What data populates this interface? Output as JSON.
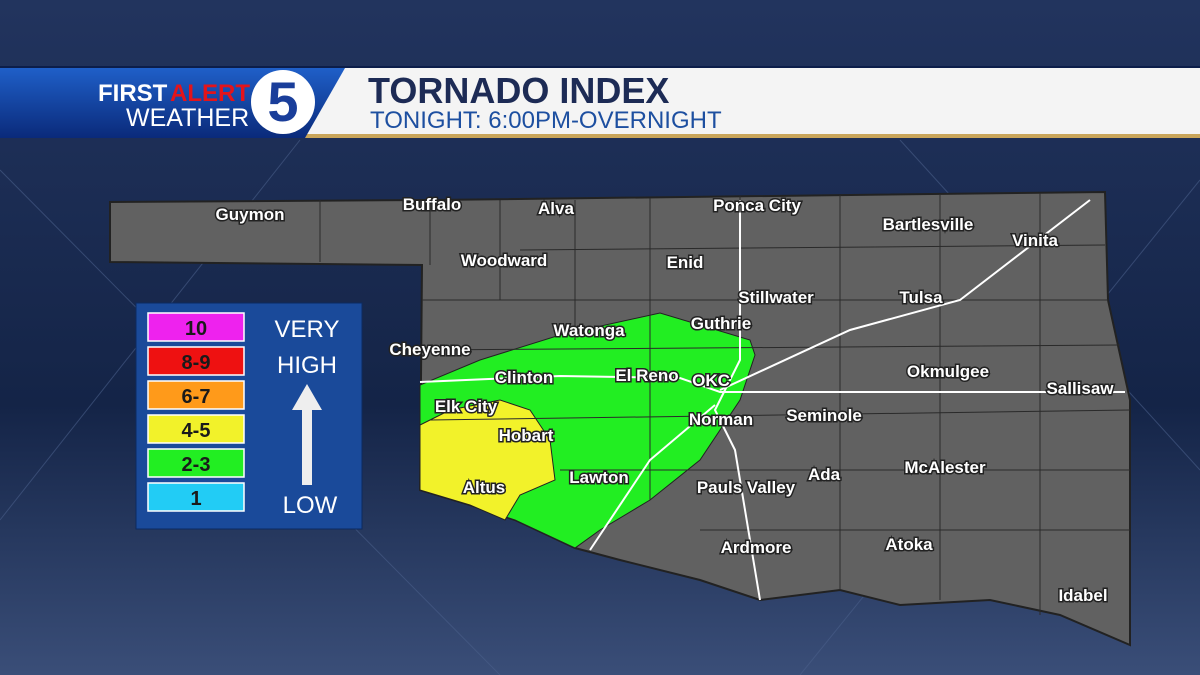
{
  "header": {
    "logo_first": "FIRST",
    "logo_alert": "ALERT",
    "logo_weather": "WEATHER",
    "logo_number": "5",
    "title": "TORNADO INDEX",
    "subtitle": "TONIGHT: 6:00PM-OVERNIGHT"
  },
  "legend": {
    "levels": [
      {
        "label": "10",
        "color": "#ee22ee"
      },
      {
        "label": "8-9",
        "color": "#ee1111"
      },
      {
        "label": "6-7",
        "color": "#ff9a1a"
      },
      {
        "label": "4-5",
        "color": "#f2f22a"
      },
      {
        "label": "2-3",
        "color": "#22ee22"
      },
      {
        "label": "1",
        "color": "#22ccf5"
      }
    ],
    "high_line1": "VERY",
    "high_line2": "HIGH",
    "low": "LOW"
  },
  "map": {
    "cities": [
      "Guymon",
      "Buffalo",
      "Alva",
      "Ponca City",
      "Bartlesville",
      "Vinita",
      "Woodward",
      "Enid",
      "Stillwater",
      "Tulsa",
      "Watonga",
      "Guthrie",
      "Cheyenne",
      "Clinton",
      "El Reno",
      "OKC",
      "Okmulgee",
      "Sallisaw",
      "Elk City",
      "Norman",
      "Seminole",
      "Hobart",
      "Lawton",
      "Altus",
      "Pauls Valley",
      "Ada",
      "McAlester",
      "Ardmore",
      "Atoka",
      "Idabel"
    ],
    "zones": [
      {
        "level": "2-3",
        "color": "#22ee22"
      },
      {
        "level": "4-5",
        "color": "#f2f22a"
      }
    ]
  }
}
